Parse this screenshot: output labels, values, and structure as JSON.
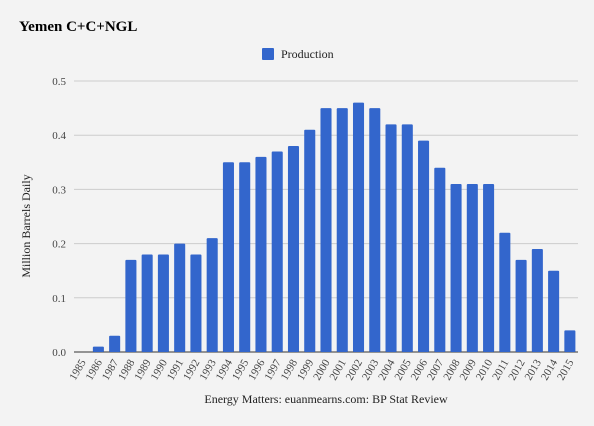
{
  "chart_data": {
    "type": "bar",
    "title": "Yemen C+C+NGL",
    "xlabel": "Energy Matters: euanmearns.com: BP Stat Review",
    "ylabel": "Million Barrels Daily",
    "legend": {
      "position": "top",
      "entries": [
        "Production"
      ]
    },
    "ylim": [
      0,
      0.5
    ],
    "yticks": [
      "0.0",
      "0.1",
      "0.2",
      "0.3",
      "0.4",
      "0.5"
    ],
    "grid": true,
    "bar_color": "#3366cc",
    "categories": [
      "1985",
      "1986",
      "1987",
      "1988",
      "1989",
      "1990",
      "1991",
      "1992",
      "1993",
      "1994",
      "1995",
      "1996",
      "1997",
      "1998",
      "1999",
      "2000",
      "2001",
      "2002",
      "2003",
      "2004",
      "2005",
      "2006",
      "2007",
      "2008",
      "2009",
      "2010",
      "2011",
      "2012",
      "2013",
      "2014",
      "2015"
    ],
    "series": [
      {
        "name": "Production",
        "values": [
          0.0,
          0.01,
          0.03,
          0.17,
          0.18,
          0.18,
          0.2,
          0.18,
          0.21,
          0.35,
          0.35,
          0.36,
          0.37,
          0.38,
          0.41,
          0.45,
          0.45,
          0.46,
          0.45,
          0.42,
          0.42,
          0.39,
          0.34,
          0.31,
          0.31,
          0.31,
          0.22,
          0.17,
          0.19,
          0.15,
          0.04
        ]
      }
    ]
  }
}
